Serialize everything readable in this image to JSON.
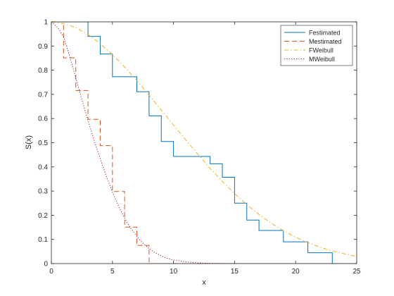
{
  "chart_data": {
    "type": "line",
    "xlabel": "x",
    "ylabel": "S(x)",
    "xlim": [
      0,
      25
    ],
    "ylim": [
      0,
      1
    ],
    "xticks": [
      0,
      5,
      10,
      15,
      20,
      25
    ],
    "yticks": [
      0,
      0.1,
      0.2,
      0.3,
      0.4,
      0.5,
      0.6,
      0.7,
      0.8,
      0.9,
      1
    ],
    "grid": false,
    "legend_position": "top-right",
    "series": [
      {
        "name": "Festimated",
        "style": "stairs",
        "color": "#0072bd",
        "dash": "solid",
        "x": [
          0,
          3,
          4,
          5,
          7,
          8,
          9,
          10,
          13,
          14,
          15,
          16,
          17,
          19,
          21,
          23
        ],
        "y": [
          1.0,
          0.94,
          0.867,
          0.773,
          0.711,
          0.611,
          0.505,
          0.443,
          0.413,
          0.357,
          0.25,
          0.18,
          0.137,
          0.09,
          0.045,
          0.0
        ]
      },
      {
        "name": "Mestimated",
        "style": "stairs",
        "color": "#d95319",
        "dash": "dashed",
        "x": [
          0,
          1,
          2,
          3,
          4,
          5,
          6,
          7,
          8
        ],
        "y": [
          1.0,
          0.851,
          0.716,
          0.597,
          0.488,
          0.298,
          0.151,
          0.075,
          0.0
        ]
      },
      {
        "name": "FWeibull",
        "style": "smooth",
        "color": "#edb120",
        "dash": "dashdot",
        "x": [
          0,
          1,
          2,
          3,
          4,
          5,
          6,
          7,
          8,
          9,
          10,
          11,
          12,
          13,
          14,
          15,
          16,
          17,
          18,
          19,
          20,
          21,
          22,
          23,
          24,
          25
        ],
        "y": [
          1.0,
          0.993,
          0.976,
          0.948,
          0.91,
          0.865,
          0.813,
          0.757,
          0.697,
          0.635,
          0.573,
          0.512,
          0.452,
          0.394,
          0.34,
          0.29,
          0.244,
          0.203,
          0.167,
          0.136,
          0.109,
          0.087,
          0.068,
          0.052,
          0.04,
          0.03
        ]
      },
      {
        "name": "MWeibull",
        "style": "smooth",
        "color": "#a2142f",
        "dash": "dotted",
        "x": [
          0,
          0.5,
          1,
          1.5,
          2,
          2.5,
          3,
          3.5,
          4,
          4.5,
          5,
          5.5,
          6,
          6.5,
          7,
          7.5,
          8,
          8.5,
          9,
          9.5,
          10,
          11,
          12,
          13,
          14,
          15,
          16,
          17,
          18,
          19
        ],
        "y": [
          1.0,
          0.978,
          0.938,
          0.858,
          0.768,
          0.678,
          0.592,
          0.51,
          0.434,
          0.362,
          0.296,
          0.238,
          0.188,
          0.146,
          0.112,
          0.084,
          0.062,
          0.045,
          0.032,
          0.022,
          0.015,
          0.007,
          0.003,
          0.001,
          0.0005,
          0.0002,
          0.0001,
          0.0,
          0.0,
          0.0
        ]
      }
    ]
  }
}
